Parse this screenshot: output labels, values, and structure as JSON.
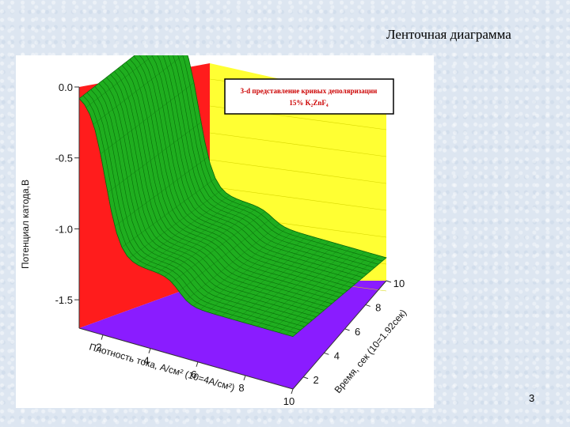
{
  "slide": {
    "title": "Ленточная диаграмма",
    "page_number": "3"
  },
  "chart_data": {
    "type": "surface",
    "legend_line1": "3-d представление кривых деполяризации",
    "legend_line2": "15% K₂ZnF₄",
    "zlabel": "Потенциал катода,В",
    "xlabel": "Плотность тока, А/см² (10=4А/см²)",
    "ylabel": "Время, сек (10=1.92сек)",
    "z_ticks": [
      0.0,
      -0.5,
      -1.0,
      -1.5
    ],
    "z_tick_labels": [
      "0.0",
      "-0.5",
      "-1.0",
      "-1.5"
    ],
    "x_ticks": [
      2,
      4,
      6,
      8,
      10
    ],
    "x_tick_labels": [
      "2",
      "4",
      "6",
      "8",
      "10"
    ],
    "y_ticks": [
      2,
      4,
      6,
      8,
      10
    ],
    "y_tick_labels": [
      "2",
      "4",
      "6",
      "8",
      "10"
    ],
    "zlim": [
      -1.7,
      0.0
    ],
    "surface_color": "#1fae1f",
    "left_wall_color": "#ff1c1c",
    "back_wall_color": "#ffff33",
    "floor_color": "#8a1cff",
    "grid": true
  }
}
